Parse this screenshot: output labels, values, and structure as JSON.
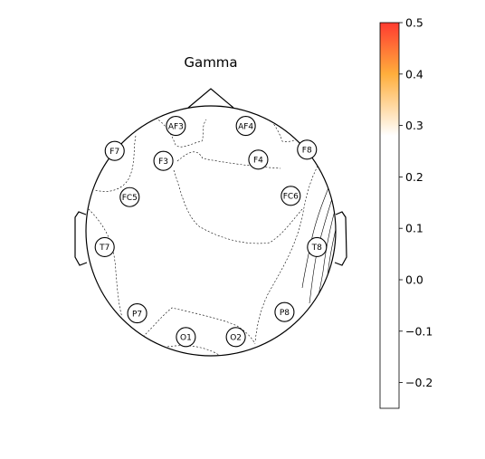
{
  "chart_data": {
    "type": "heatmap",
    "title": "Gamma",
    "electrodes": [
      {
        "label": "AF3",
        "x": -0.28,
        "y": 0.84
      },
      {
        "label": "AF4",
        "x": 0.28,
        "y": 0.84
      },
      {
        "label": "F7",
        "x": -0.77,
        "y": 0.64
      },
      {
        "label": "F3",
        "x": -0.38,
        "y": 0.56
      },
      {
        "label": "F4",
        "x": 0.38,
        "y": 0.57
      },
      {
        "label": "F8",
        "x": 0.77,
        "y": 0.65
      },
      {
        "label": "FC5",
        "x": -0.65,
        "y": 0.27
      },
      {
        "label": "FC6",
        "x": 0.64,
        "y": 0.28
      },
      {
        "label": "T7",
        "x": -0.85,
        "y": -0.13
      },
      {
        "label": "T8",
        "x": 0.85,
        "y": -0.13
      },
      {
        "label": "P7",
        "x": -0.59,
        "y": -0.66
      },
      {
        "label": "P8",
        "x": 0.59,
        "y": -0.65
      },
      {
        "label": "O1",
        "x": -0.2,
        "y": -0.85
      },
      {
        "label": "O2",
        "x": 0.2,
        "y": -0.85
      }
    ],
    "colorbar": {
      "min": -0.25,
      "max": 0.5,
      "ticks": [
        0.5,
        0.4,
        0.3,
        0.2,
        0.1,
        0.0,
        -0.1,
        -0.2
      ],
      "tick_labels": [
        "0.5",
        "0.4",
        "0.3",
        "0.2",
        "0.1",
        "0.0",
        "−0.1",
        "−0.2"
      ],
      "colormap": [
        {
          "value": 0.5,
          "color": "#ff3b30"
        },
        {
          "value": 0.4,
          "color": "#ffae3c"
        },
        {
          "value": 0.28,
          "color": "#ffffff"
        },
        {
          "value": -0.25,
          "color": "#ffffff"
        }
      ]
    }
  }
}
